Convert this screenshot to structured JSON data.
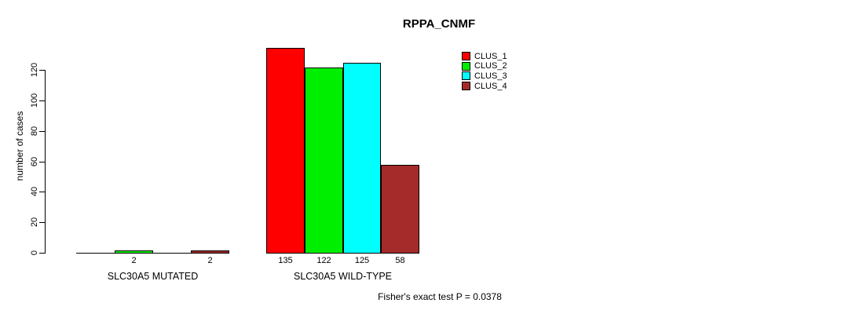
{
  "chart_data": {
    "type": "bar",
    "title": "RPPA_CNMF",
    "ylabel": "number of cases",
    "xlabel": "",
    "categories": [
      "SLC30A5 MUTATED",
      "SLC30A5 WILD-TYPE"
    ],
    "series": [
      {
        "name": "CLUS_1",
        "color": "#ff0000",
        "values": [
          0,
          135
        ]
      },
      {
        "name": "CLUS_2",
        "color": "#00ee00",
        "values": [
          2,
          122
        ]
      },
      {
        "name": "CLUS_3",
        "color": "#00ffff",
        "values": [
          0,
          125
        ]
      },
      {
        "name": "CLUS_4",
        "color": "#a52a2a",
        "values": [
          2,
          58
        ]
      }
    ],
    "yticks": [
      0,
      20,
      40,
      60,
      80,
      100,
      120
    ],
    "ylim": [
      0,
      140
    ],
    "grid": false,
    "legend_position": "inside-top-right",
    "legend_entries": [
      "CLUS_1",
      "CLUS_2",
      "CLUS_3",
      "CLUS_4"
    ],
    "value_labels_shown": true,
    "zero_bars_unlabeled": true,
    "annotation": "Fisher's exact test P = 0.0378"
  },
  "colors": {
    "background": "#ffffff",
    "axis": "#000000",
    "bar_border": "#000000",
    "text": "#000000"
  }
}
